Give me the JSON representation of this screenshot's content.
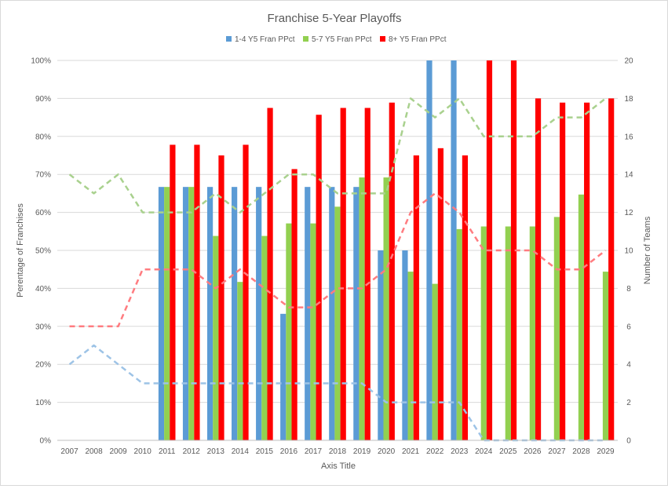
{
  "chart_data": {
    "type": "bar",
    "title": "Franchise 5-Year Playoffs",
    "xlabel": "Axis Title",
    "ylabel": "Perentage of Franchises",
    "y2label": "Number of Teams",
    "ylim": [
      0,
      100
    ],
    "y2lim": [
      0,
      20
    ],
    "yticks": [
      "0%",
      "10%",
      "20%",
      "30%",
      "40%",
      "50%",
      "60%",
      "70%",
      "80%",
      "90%",
      "100%"
    ],
    "y2ticks": [
      "0",
      "2",
      "4",
      "6",
      "8",
      "10",
      "12",
      "14",
      "16",
      "18",
      "20"
    ],
    "legend_position": "top",
    "grid": true,
    "categories": [
      "2007",
      "2008",
      "2009",
      "2010",
      "2011",
      "2012",
      "2013",
      "2014",
      "2015",
      "2016",
      "2017",
      "2018",
      "2019",
      "2020",
      "2021",
      "2022",
      "2023",
      "2024",
      "2025",
      "2026",
      "2027",
      "2028",
      "2029"
    ],
    "series": [
      {
        "name": "1-4 Y5 Fran PPct",
        "color": "#5b9bd5",
        "values": [
          0,
          0,
          0,
          0,
          66.7,
          66.7,
          66.7,
          66.7,
          66.7,
          33.3,
          66.7,
          66.7,
          66.7,
          50,
          50,
          100,
          100,
          0,
          0,
          0,
          0,
          0,
          0
        ]
      },
      {
        "name": "5-7 Y5 Fran PPct",
        "color": "#92d050",
        "values": [
          0,
          0,
          0,
          0,
          66.7,
          66.7,
          53.8,
          41.7,
          53.8,
          57.1,
          57.1,
          61.5,
          69.2,
          69.2,
          44.4,
          41.2,
          55.6,
          56.3,
          56.3,
          56.3,
          58.8,
          64.7,
          44.4
        ]
      },
      {
        "name": "8+ Y5 Fran PPct",
        "color": "#ff0000",
        "values": [
          0,
          0,
          0,
          0,
          77.8,
          77.8,
          75,
          77.8,
          87.5,
          71.4,
          85.7,
          87.5,
          87.5,
          88.9,
          75,
          76.9,
          75,
          100,
          100,
          90,
          88.9,
          88.9,
          90
        ]
      }
    ],
    "line_series": [
      {
        "color": "#9dc3e6",
        "axis": "secondary",
        "style": "dashed",
        "values": [
          4,
          5,
          4,
          3,
          3,
          3,
          3,
          3,
          3,
          3,
          3,
          3,
          3,
          2,
          2,
          2,
          2,
          0,
          0,
          0,
          0,
          0,
          0
        ]
      },
      {
        "color": "#a9d18e",
        "axis": "secondary",
        "style": "dashed",
        "values": [
          14,
          13,
          14,
          12,
          12,
          12,
          13,
          12,
          13,
          14,
          14,
          13,
          13,
          13,
          18,
          17,
          18,
          16,
          16,
          16,
          17,
          17,
          18
        ]
      },
      {
        "color": "#ff7c80",
        "axis": "secondary",
        "style": "dashed",
        "values": [
          6,
          6,
          6,
          9,
          9,
          9,
          8,
          9,
          8,
          7,
          7,
          8,
          8,
          9,
          12,
          13,
          12,
          10,
          10,
          10,
          9,
          9,
          10
        ]
      }
    ]
  }
}
